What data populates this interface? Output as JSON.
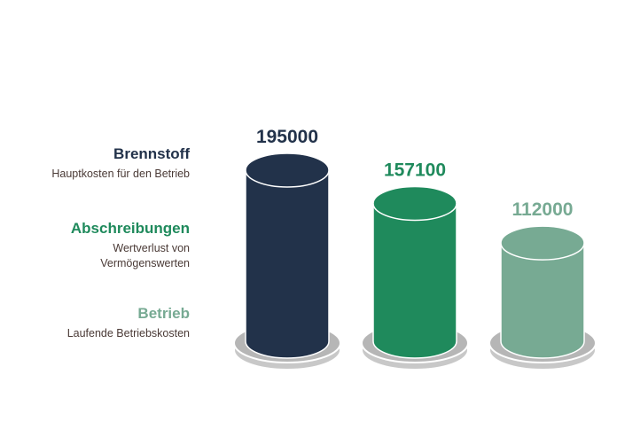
{
  "chart_data": {
    "type": "bar",
    "categories": [
      "Brennstoff",
      "Abschreibungen",
      "Betrieb"
    ],
    "values": [
      195000,
      157100,
      112000
    ],
    "value_labels": [
      "195000",
      "157100",
      "112000"
    ],
    "colors": [
      "#22324a",
      "#1f8a5c",
      "#77aa93"
    ],
    "legend": [
      {
        "title": "Brennstoff",
        "description": "Hauptkosten für den Betrieb",
        "color": "#22324a"
      },
      {
        "title": "Abschreibungen",
        "description": "Wertverlust von Vermögenswerten",
        "color": "#1f8a5c"
      },
      {
        "title": "Betrieb",
        "description": "Laufende Betriebskosten",
        "color": "#77aa93"
      }
    ],
    "legend_position": "left",
    "bar_style": "cylinder",
    "grid": false
  }
}
